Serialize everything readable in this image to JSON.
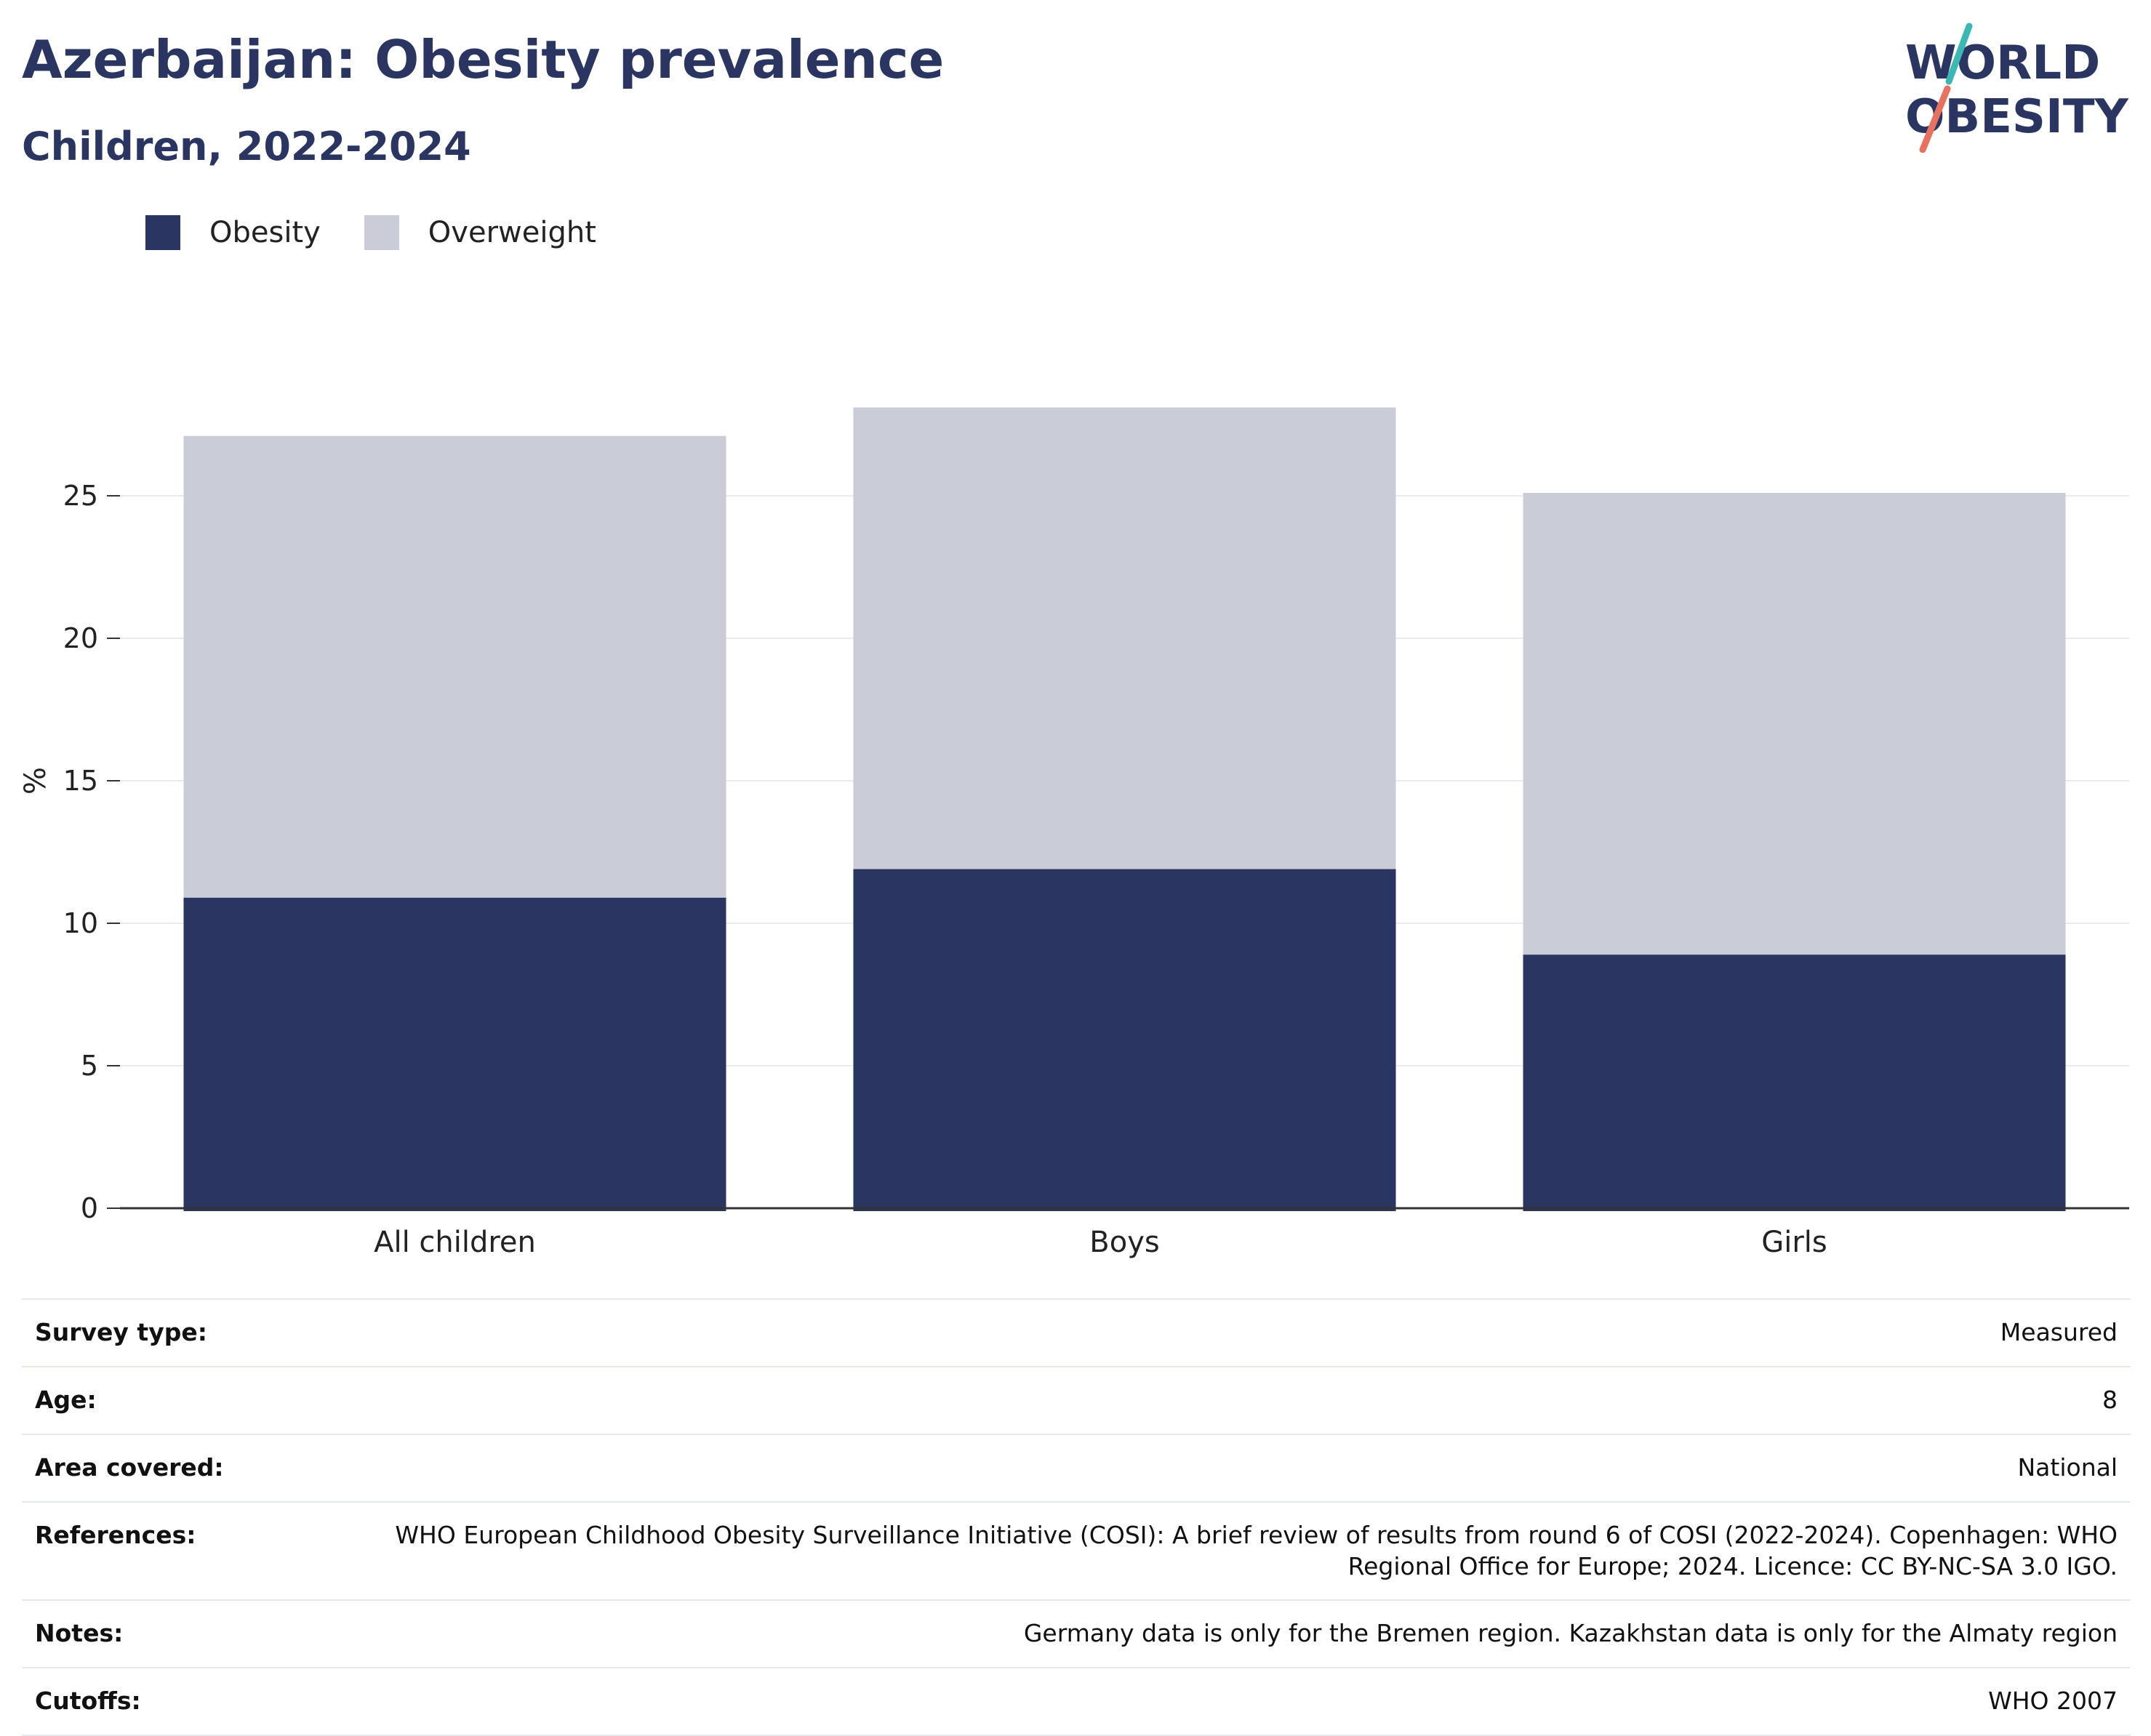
{
  "header": {
    "title": "Azerbaijan: Obesity prevalence",
    "subtitle": "Children, 2022-2024"
  },
  "logo": {
    "line1": "WORLD",
    "line2": "OBESITY",
    "colors": {
      "text": "#2a3661",
      "teal": "#3bb8b3",
      "coral": "#e8725f"
    }
  },
  "chart_data": {
    "type": "bar",
    "stacked": true,
    "categories": [
      "All children",
      "Boys",
      "Girls"
    ],
    "series": [
      {
        "name": "Obesity",
        "color": "#2a3661",
        "values": [
          10.9,
          11.9,
          8.9
        ]
      },
      {
        "name": "Overweight",
        "color": "#cacdd8",
        "values": [
          16.2,
          16.2,
          16.2
        ]
      }
    ],
    "ylabel": "%",
    "ylim": [
      0,
      30
    ],
    "yticks": [
      0,
      5,
      10,
      15,
      20,
      25
    ],
    "grid": true,
    "legend_position": "top-left"
  },
  "info": {
    "rows": [
      {
        "label": "Survey type:",
        "value": "Measured"
      },
      {
        "label": "Age:",
        "value": "8"
      },
      {
        "label": "Area covered:",
        "value": "National"
      },
      {
        "label": "References:",
        "value": "WHO European Childhood Obesity Surveillance Initiative (COSI): A brief review of results from round 6 of COSI (2022-2024). Copenhagen: WHO Regional Office for Europe; 2024. Licence: CC BY-NC-SA 3.0 IGO."
      },
      {
        "label": "Notes:",
        "value": "Germany data is only for the Bremen region. Kazakhstan data is only for the Almaty region"
      },
      {
        "label": "Cutoffs:",
        "value": "WHO 2007"
      }
    ]
  }
}
